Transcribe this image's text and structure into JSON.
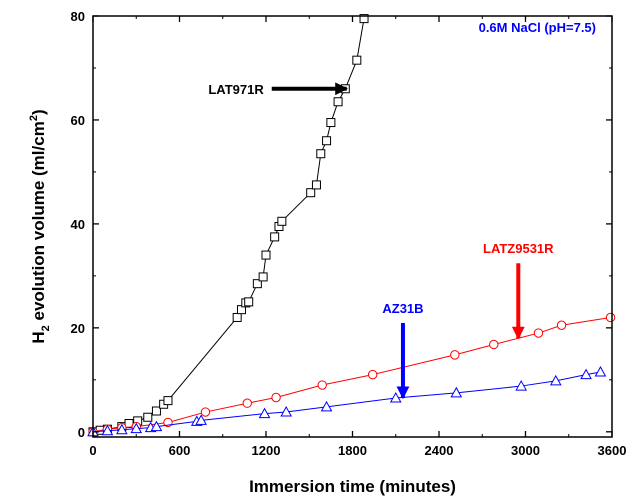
{
  "chart_data": {
    "type": "line",
    "title": "",
    "xlabel": "Immersion time (minutes)",
    "ylabel_prefix": "H",
    "ylabel_sub": "2",
    "ylabel_main": " evolution volume (ml/cm",
    "ylabel_sup": "2",
    "ylabel_close": ")",
    "xlim": [
      0,
      3600
    ],
    "ylim": [
      -1,
      80
    ],
    "x_ticks": [
      0,
      600,
      1200,
      1800,
      2400,
      3000,
      3600
    ],
    "y_ticks": [
      0,
      20,
      40,
      60,
      80
    ],
    "grid": false,
    "condition_note": "0.6M NaCl (pH=7.5)",
    "series": [
      {
        "name": "LAT971R",
        "color": "#000000",
        "marker": "square",
        "x": [
          0,
          50,
          100,
          200,
          250,
          310,
          380,
          440,
          490,
          520,
          1000,
          1030,
          1060,
          1080,
          1140,
          1180,
          1200,
          1260,
          1290,
          1310,
          1510,
          1550,
          1580,
          1620,
          1650,
          1700,
          1750,
          1830,
          1880
        ],
        "y": [
          0,
          0.3,
          0.5,
          1.0,
          1.6,
          2.1,
          2.8,
          4.0,
          5.3,
          6.0,
          22.0,
          23.5,
          24.8,
          25.0,
          28.5,
          29.8,
          34.0,
          37.5,
          39.5,
          40.5,
          46.0,
          47.5,
          53.5,
          56.0,
          59.5,
          63.5,
          66.0,
          71.5,
          79.5
        ]
      },
      {
        "name": "LATZ9531R",
        "color": "#ff0000",
        "marker": "circle",
        "x": [
          0,
          100,
          200,
          300,
          520,
          780,
          1070,
          1270,
          1590,
          1940,
          2510,
          2780,
          3090,
          3250,
          3590
        ],
        "y": [
          0,
          0.5,
          0.8,
          1.0,
          1.8,
          3.8,
          5.5,
          6.6,
          9.0,
          11.0,
          14.8,
          16.8,
          19.0,
          20.5,
          22.0
        ]
      },
      {
        "name": "AZ31B",
        "color": "#0000ff",
        "marker": "triangle",
        "x": [
          0,
          100,
          200,
          300,
          400,
          440,
          720,
          750,
          1190,
          1340,
          1620,
          2100,
          2520,
          2970,
          3210,
          3420,
          3520
        ],
        "y": [
          0,
          0.2,
          0.4,
          0.6,
          0.8,
          1.0,
          2.0,
          2.2,
          3.5,
          3.8,
          4.8,
          6.5,
          7.5,
          8.8,
          9.8,
          11.0,
          11.5
        ]
      }
    ],
    "annotations": [
      {
        "label": "LAT971R",
        "color": "#000000",
        "arrow_dir": "right",
        "target": [
          1760,
          66
        ]
      },
      {
        "label": "LATZ9531R",
        "color": "#ff0000",
        "arrow_dir": "down",
        "target": [
          2950,
          18
        ]
      },
      {
        "label": "AZ31B",
        "color": "#0000ff",
        "arrow_dir": "down",
        "target": [
          2150,
          6.5
        ]
      }
    ]
  }
}
